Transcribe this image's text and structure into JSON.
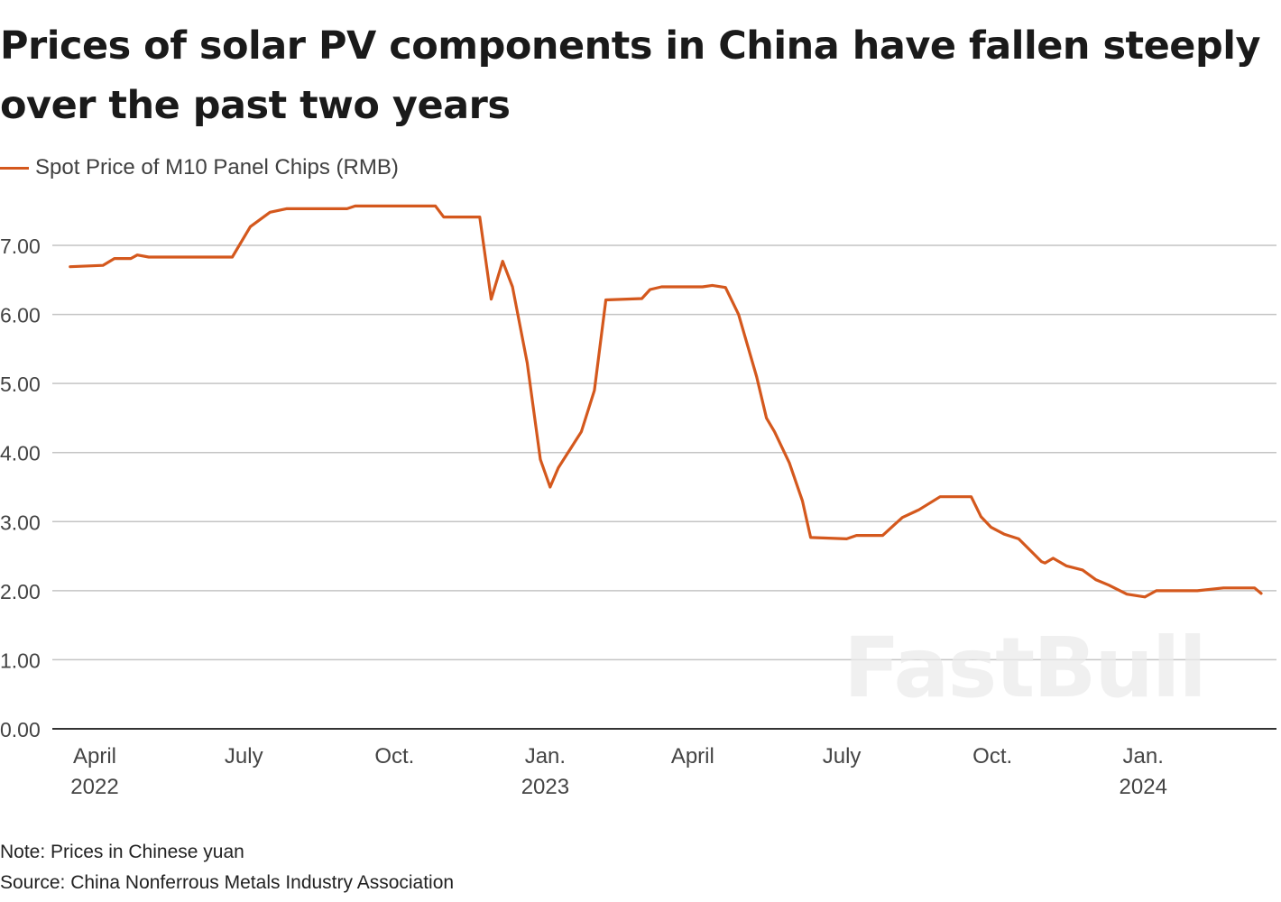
{
  "title": "Prices of solar PV components in China have fallen steeply over the past two years",
  "note": "Note: Prices in Chinese yuan",
  "source": "Source: China Nonferrous Metals Industry Association",
  "watermark": "FastBull",
  "chart_data": {
    "type": "line",
    "title": "Prices of solar PV components in China have fallen steeply over the past two years",
    "xlabel": "",
    "ylabel": "",
    "ylim": [
      0,
      7.5
    ],
    "yticks": [
      0,
      1,
      2,
      3,
      4,
      5,
      6,
      7
    ],
    "ytick_labels": [
      "0.00",
      "1.00",
      "2.00",
      "3.00",
      "4.00",
      "5.00",
      "6.00",
      "7.00"
    ],
    "xticks": [
      {
        "date": "2022-04-01",
        "label": "April",
        "sublabel": "2022"
      },
      {
        "date": "2022-07-01",
        "label": "July",
        "sublabel": ""
      },
      {
        "date": "2022-10-01",
        "label": "Oct.",
        "sublabel": ""
      },
      {
        "date": "2023-01-01",
        "label": "Jan.",
        "sublabel": "2023"
      },
      {
        "date": "2023-04-01",
        "label": "April",
        "sublabel": ""
      },
      {
        "date": "2023-07-01",
        "label": "July",
        "sublabel": ""
      },
      {
        "date": "2023-10-01",
        "label": "Oct.",
        "sublabel": ""
      },
      {
        "date": "2024-01-01",
        "label": "Jan.",
        "sublabel": "2024"
      }
    ],
    "grid": true,
    "legend_placement": "top-left",
    "colors": {
      "series": "#d4581d",
      "grid": "#c4c4c4",
      "axis": "#333333"
    },
    "series": [
      {
        "name": "Spot Price of M10 Panel Chips (RMB)",
        "points": [
          [
            "2022-03-17",
            6.69
          ],
          [
            "2022-04-06",
            6.71
          ],
          [
            "2022-04-13",
            6.81
          ],
          [
            "2022-04-23",
            6.81
          ],
          [
            "2022-04-27",
            6.86
          ],
          [
            "2022-05-04",
            6.83
          ],
          [
            "2022-06-24",
            6.83
          ],
          [
            "2022-07-05",
            7.27
          ],
          [
            "2022-07-17",
            7.48
          ],
          [
            "2022-07-27",
            7.53
          ],
          [
            "2022-09-02",
            7.53
          ],
          [
            "2022-09-07",
            7.57
          ],
          [
            "2022-10-26",
            7.57
          ],
          [
            "2022-10-31",
            7.41
          ],
          [
            "2022-11-22",
            7.41
          ],
          [
            "2022-11-29",
            6.22
          ],
          [
            "2022-12-06",
            6.77
          ],
          [
            "2022-12-12",
            6.4
          ],
          [
            "2022-12-21",
            5.3
          ],
          [
            "2022-12-29",
            3.9
          ],
          [
            "2023-01-04",
            3.5
          ],
          [
            "2023-01-09",
            3.78
          ],
          [
            "2023-01-23",
            4.3
          ],
          [
            "2023-01-31",
            4.9
          ],
          [
            "2023-02-07",
            6.21
          ],
          [
            "2023-03-01",
            6.23
          ],
          [
            "2023-03-06",
            6.36
          ],
          [
            "2023-03-13",
            6.4
          ],
          [
            "2023-04-07",
            6.4
          ],
          [
            "2023-04-13",
            6.42
          ],
          [
            "2023-04-21",
            6.39
          ],
          [
            "2023-04-29",
            6.0
          ],
          [
            "2023-05-10",
            5.1
          ],
          [
            "2023-05-16",
            4.5
          ],
          [
            "2023-05-21",
            4.3
          ],
          [
            "2023-05-30",
            3.85
          ],
          [
            "2023-06-07",
            3.3
          ],
          [
            "2023-06-12",
            2.77
          ],
          [
            "2023-07-04",
            2.75
          ],
          [
            "2023-07-10",
            2.8
          ],
          [
            "2023-07-26",
            2.8
          ],
          [
            "2023-08-01",
            2.93
          ],
          [
            "2023-08-07",
            3.06
          ],
          [
            "2023-08-17",
            3.17
          ],
          [
            "2023-08-30",
            3.36
          ],
          [
            "2023-09-18",
            3.36
          ],
          [
            "2023-09-24",
            3.07
          ],
          [
            "2023-09-30",
            2.92
          ],
          [
            "2023-10-08",
            2.82
          ],
          [
            "2023-10-17",
            2.75
          ],
          [
            "2023-10-31",
            2.42
          ],
          [
            "2023-11-02",
            2.4
          ],
          [
            "2023-11-07",
            2.47
          ],
          [
            "2023-11-15",
            2.36
          ],
          [
            "2023-11-25",
            2.3
          ],
          [
            "2023-12-03",
            2.16
          ],
          [
            "2023-12-11",
            2.08
          ],
          [
            "2023-12-22",
            1.95
          ],
          [
            "2024-01-02",
            1.91
          ],
          [
            "2024-01-09",
            2.0
          ],
          [
            "2024-02-03",
            2.0
          ],
          [
            "2024-02-19",
            2.04
          ],
          [
            "2024-03-09",
            2.04
          ],
          [
            "2024-03-13",
            1.96
          ]
        ]
      }
    ]
  }
}
